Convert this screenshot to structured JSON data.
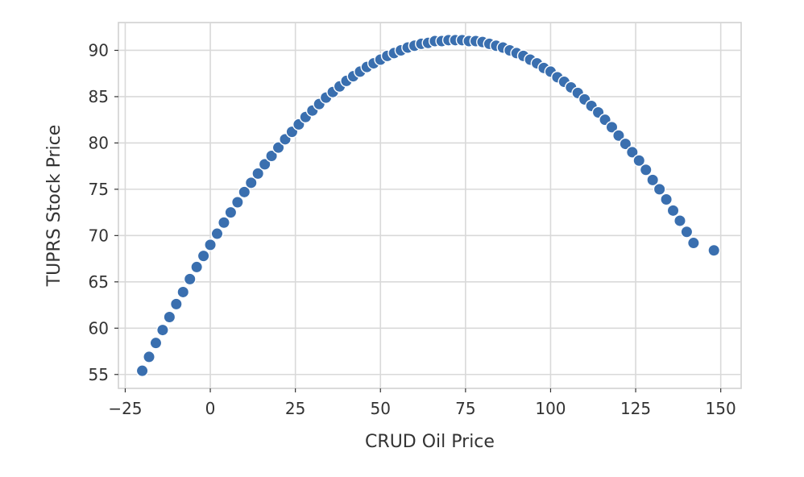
{
  "chart_data": {
    "type": "scatter",
    "xlabel": "CRUD Oil Price",
    "ylabel": "TUPRS Stock Price",
    "xlim": [
      -27,
      156
    ],
    "ylim": [
      53.5,
      93
    ],
    "xticks": [
      -25,
      0,
      25,
      50,
      75,
      100,
      125,
      150
    ],
    "yticks": [
      55,
      60,
      65,
      70,
      75,
      80,
      85,
      90
    ],
    "grid": true,
    "legend": "none",
    "colors": {
      "point": "#3a6faf"
    },
    "points": [
      {
        "x": -20,
        "y": 55.4
      },
      {
        "x": -18,
        "y": 56.9
      },
      {
        "x": -16,
        "y": 58.4
      },
      {
        "x": -14,
        "y": 59.8
      },
      {
        "x": -12,
        "y": 61.2
      },
      {
        "x": -10,
        "y": 62.6
      },
      {
        "x": -8,
        "y": 63.9
      },
      {
        "x": -6,
        "y": 65.3
      },
      {
        "x": -4,
        "y": 66.6
      },
      {
        "x": -2,
        "y": 67.8
      },
      {
        "x": 0,
        "y": 69.0
      },
      {
        "x": 2,
        "y": 70.2
      },
      {
        "x": 4,
        "y": 71.4
      },
      {
        "x": 6,
        "y": 72.5
      },
      {
        "x": 8,
        "y": 73.6
      },
      {
        "x": 10,
        "y": 74.7
      },
      {
        "x": 12,
        "y": 75.7
      },
      {
        "x": 14,
        "y": 76.7
      },
      {
        "x": 16,
        "y": 77.7
      },
      {
        "x": 18,
        "y": 78.6
      },
      {
        "x": 20,
        "y": 79.5
      },
      {
        "x": 22,
        "y": 80.4
      },
      {
        "x": 24,
        "y": 81.2
      },
      {
        "x": 26,
        "y": 82.0
      },
      {
        "x": 28,
        "y": 82.8
      },
      {
        "x": 30,
        "y": 83.5
      },
      {
        "x": 32,
        "y": 84.2
      },
      {
        "x": 34,
        "y": 84.9
      },
      {
        "x": 36,
        "y": 85.5
      },
      {
        "x": 38,
        "y": 86.1
      },
      {
        "x": 40,
        "y": 86.7
      },
      {
        "x": 42,
        "y": 87.2
      },
      {
        "x": 44,
        "y": 87.7
      },
      {
        "x": 46,
        "y": 88.2
      },
      {
        "x": 48,
        "y": 88.6
      },
      {
        "x": 50,
        "y": 89.0
      },
      {
        "x": 52,
        "y": 89.4
      },
      {
        "x": 54,
        "y": 89.7
      },
      {
        "x": 56,
        "y": 90.0
      },
      {
        "x": 58,
        "y": 90.3
      },
      {
        "x": 60,
        "y": 90.5
      },
      {
        "x": 62,
        "y": 90.7
      },
      {
        "x": 64,
        "y": 90.8
      },
      {
        "x": 66,
        "y": 91.0
      },
      {
        "x": 68,
        "y": 91.0
      },
      {
        "x": 70,
        "y": 91.1
      },
      {
        "x": 72,
        "y": 91.1
      },
      {
        "x": 74,
        "y": 91.1
      },
      {
        "x": 76,
        "y": 91.0
      },
      {
        "x": 78,
        "y": 91.0
      },
      {
        "x": 80,
        "y": 90.9
      },
      {
        "x": 82,
        "y": 90.7
      },
      {
        "x": 84,
        "y": 90.5
      },
      {
        "x": 86,
        "y": 90.3
      },
      {
        "x": 88,
        "y": 90.0
      },
      {
        "x": 90,
        "y": 89.7
      },
      {
        "x": 92,
        "y": 89.4
      },
      {
        "x": 94,
        "y": 89.0
      },
      {
        "x": 96,
        "y": 88.6
      },
      {
        "x": 98,
        "y": 88.1
      },
      {
        "x": 100,
        "y": 87.7
      },
      {
        "x": 102,
        "y": 87.1
      },
      {
        "x": 104,
        "y": 86.6
      },
      {
        "x": 106,
        "y": 86.0
      },
      {
        "x": 108,
        "y": 85.4
      },
      {
        "x": 110,
        "y": 84.7
      },
      {
        "x": 112,
        "y": 84.0
      },
      {
        "x": 114,
        "y": 83.3
      },
      {
        "x": 116,
        "y": 82.5
      },
      {
        "x": 118,
        "y": 81.7
      },
      {
        "x": 120,
        "y": 80.8
      },
      {
        "x": 122,
        "y": 79.9
      },
      {
        "x": 124,
        "y": 79.0
      },
      {
        "x": 126,
        "y": 78.1
      },
      {
        "x": 128,
        "y": 77.1
      },
      {
        "x": 130,
        "y": 76.0
      },
      {
        "x": 132,
        "y": 75.0
      },
      {
        "x": 134,
        "y": 73.9
      },
      {
        "x": 136,
        "y": 72.7
      },
      {
        "x": 138,
        "y": 71.6
      },
      {
        "x": 140,
        "y": 70.4
      },
      {
        "x": 142,
        "y": 69.2
      },
      {
        "x": 148,
        "y": 68.4
      }
    ]
  }
}
